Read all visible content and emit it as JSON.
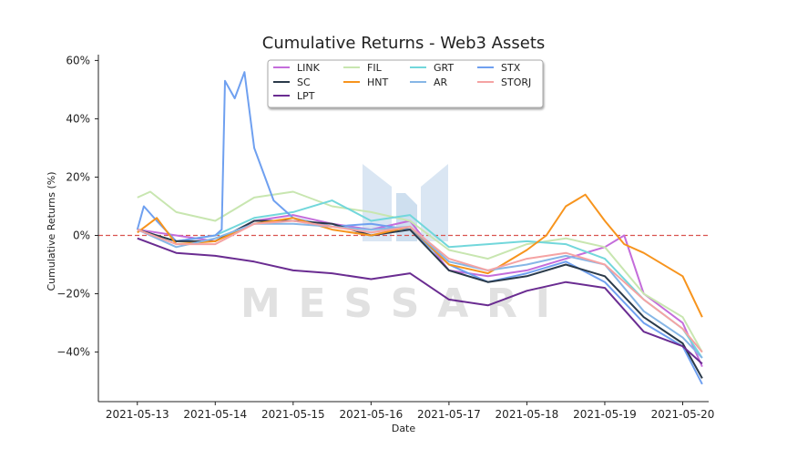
{
  "chart_data": {
    "type": "line",
    "title": "Cumulative Returns - Web3 Assets",
    "xlabel": "Date",
    "ylabel": "Cumulative Returns (%)",
    "x_ticks": [
      "2021-05-13",
      "2021-05-14",
      "2021-05-15",
      "2021-05-16",
      "2021-05-17",
      "2021-05-18",
      "2021-05-19",
      "2021-05-20"
    ],
    "y_ticks": [
      {
        "value": 60,
        "label": "60%"
      },
      {
        "value": 40,
        "label": "40%"
      },
      {
        "value": 20,
        "label": "20%"
      },
      {
        "value": 0,
        "label": "0%"
      },
      {
        "value": -20,
        "label": "−20%"
      },
      {
        "value": -40,
        "label": "−40%"
      }
    ],
    "xlim": [
      "2021-05-12 12:00",
      "2021-05-20 08:00"
    ],
    "ylim": [
      -57,
      62
    ],
    "reference_line": {
      "value": 0,
      "color": "#d9534f",
      "style": "dashed"
    },
    "legend_placement": "top-center",
    "grid": false,
    "watermark": "MESSARI",
    "series": [
      {
        "name": "LINK",
        "color": "#c46ddb",
        "points": [
          [
            "2021-05-13 00:00",
            2
          ],
          [
            "2021-05-13 12:00",
            0
          ],
          [
            "2021-05-14 00:00",
            -2
          ],
          [
            "2021-05-14 12:00",
            5
          ],
          [
            "2021-05-15 00:00",
            7
          ],
          [
            "2021-05-15 12:00",
            4
          ],
          [
            "2021-05-16 00:00",
            2
          ],
          [
            "2021-05-16 12:00",
            5
          ],
          [
            "2021-05-17 00:00",
            -12
          ],
          [
            "2021-05-17 12:00",
            -14
          ],
          [
            "2021-05-18 00:00",
            -12
          ],
          [
            "2021-05-18 12:00",
            -8
          ],
          [
            "2021-05-19 00:00",
            -4
          ],
          [
            "2021-05-19 06:00",
            0
          ],
          [
            "2021-05-19 12:00",
            -20
          ],
          [
            "2021-05-20 00:00",
            -30
          ],
          [
            "2021-05-20 06:00",
            -45
          ]
        ]
      },
      {
        "name": "FIL",
        "color": "#c8e6b0",
        "points": [
          [
            "2021-05-13 00:00",
            13
          ],
          [
            "2021-05-13 04:00",
            15
          ],
          [
            "2021-05-13 12:00",
            8
          ],
          [
            "2021-05-14 00:00",
            5
          ],
          [
            "2021-05-14 12:00",
            13
          ],
          [
            "2021-05-15 00:00",
            15
          ],
          [
            "2021-05-15 12:00",
            10
          ],
          [
            "2021-05-16 00:00",
            8
          ],
          [
            "2021-05-16 12:00",
            5
          ],
          [
            "2021-05-17 00:00",
            -5
          ],
          [
            "2021-05-17 12:00",
            -8
          ],
          [
            "2021-05-18 00:00",
            -3
          ],
          [
            "2021-05-18 12:00",
            -1
          ],
          [
            "2021-05-19 00:00",
            -4
          ],
          [
            "2021-05-19 12:00",
            -20
          ],
          [
            "2021-05-20 00:00",
            -28
          ],
          [
            "2021-05-20 06:00",
            -40
          ]
        ]
      },
      {
        "name": "GRT",
        "color": "#72d7db",
        "points": [
          [
            "2021-05-13 00:00",
            2
          ],
          [
            "2021-05-13 12:00",
            -2
          ],
          [
            "2021-05-14 00:00",
            0
          ],
          [
            "2021-05-14 12:00",
            6
          ],
          [
            "2021-05-15 00:00",
            8
          ],
          [
            "2021-05-15 12:00",
            12
          ],
          [
            "2021-05-16 00:00",
            5
          ],
          [
            "2021-05-16 12:00",
            7
          ],
          [
            "2021-05-17 00:00",
            -4
          ],
          [
            "2021-05-17 12:00",
            -3
          ],
          [
            "2021-05-18 00:00",
            -2
          ],
          [
            "2021-05-18 12:00",
            -3
          ],
          [
            "2021-05-19 00:00",
            -8
          ],
          [
            "2021-05-19 12:00",
            -22
          ],
          [
            "2021-05-20 00:00",
            -32
          ],
          [
            "2021-05-20 06:00",
            -42
          ]
        ]
      },
      {
        "name": "STX",
        "color": "#6fa0f0",
        "points": [
          [
            "2021-05-13 00:00",
            2
          ],
          [
            "2021-05-13 02:00",
            10
          ],
          [
            "2021-05-13 06:00",
            5
          ],
          [
            "2021-05-13 12:00",
            -2
          ],
          [
            "2021-05-14 00:00",
            0
          ],
          [
            "2021-05-14 02:00",
            2
          ],
          [
            "2021-05-14 03:00",
            53
          ],
          [
            "2021-05-14 06:00",
            47
          ],
          [
            "2021-05-14 09:00",
            56
          ],
          [
            "2021-05-14 12:00",
            30
          ],
          [
            "2021-05-14 18:00",
            12
          ],
          [
            "2021-05-15 00:00",
            6
          ],
          [
            "2021-05-15 12:00",
            3
          ],
          [
            "2021-05-16 00:00",
            4
          ],
          [
            "2021-05-16 12:00",
            2
          ],
          [
            "2021-05-17 00:00",
            -10
          ],
          [
            "2021-05-17 12:00",
            -16
          ],
          [
            "2021-05-18 00:00",
            -13
          ],
          [
            "2021-05-18 12:00",
            -9
          ],
          [
            "2021-05-19 00:00",
            -16
          ],
          [
            "2021-05-19 12:00",
            -30
          ],
          [
            "2021-05-20 00:00",
            -38
          ],
          [
            "2021-05-20 06:00",
            -51
          ]
        ]
      },
      {
        "name": "SC",
        "color": "#2a3a4a",
        "points": [
          [
            "2021-05-13 00:00",
            2
          ],
          [
            "2021-05-13 12:00",
            -2
          ],
          [
            "2021-05-14 00:00",
            -2
          ],
          [
            "2021-05-14 12:00",
            5
          ],
          [
            "2021-05-15 00:00",
            5
          ],
          [
            "2021-05-15 12:00",
            4
          ],
          [
            "2021-05-16 00:00",
            0
          ],
          [
            "2021-05-16 12:00",
            2
          ],
          [
            "2021-05-17 00:00",
            -12
          ],
          [
            "2021-05-17 12:00",
            -16
          ],
          [
            "2021-05-18 00:00",
            -14
          ],
          [
            "2021-05-18 12:00",
            -10
          ],
          [
            "2021-05-19 00:00",
            -14
          ],
          [
            "2021-05-19 12:00",
            -28
          ],
          [
            "2021-05-20 00:00",
            -37
          ],
          [
            "2021-05-20 06:00",
            -49
          ]
        ]
      },
      {
        "name": "HNT",
        "color": "#f7941d",
        "points": [
          [
            "2021-05-13 00:00",
            1
          ],
          [
            "2021-05-13 06:00",
            6
          ],
          [
            "2021-05-13 12:00",
            -3
          ],
          [
            "2021-05-14 00:00",
            -2
          ],
          [
            "2021-05-14 12:00",
            4
          ],
          [
            "2021-05-15 00:00",
            6
          ],
          [
            "2021-05-15 12:00",
            2
          ],
          [
            "2021-05-16 00:00",
            0
          ],
          [
            "2021-05-16 12:00",
            3
          ],
          [
            "2021-05-17 00:00",
            -10
          ],
          [
            "2021-05-17 12:00",
            -13
          ],
          [
            "2021-05-18 00:00",
            -5
          ],
          [
            "2021-05-18 06:00",
            0
          ],
          [
            "2021-05-18 12:00",
            10
          ],
          [
            "2021-05-18 18:00",
            14
          ],
          [
            "2021-05-19 00:00",
            5
          ],
          [
            "2021-05-19 06:00",
            -3
          ],
          [
            "2021-05-19 12:00",
            -6
          ],
          [
            "2021-05-20 00:00",
            -14
          ],
          [
            "2021-05-20 06:00",
            -28
          ]
        ]
      },
      {
        "name": "AR",
        "color": "#86b6e6",
        "points": [
          [
            "2021-05-13 00:00",
            2
          ],
          [
            "2021-05-13 12:00",
            -4
          ],
          [
            "2021-05-14 00:00",
            -1
          ],
          [
            "2021-05-14 12:00",
            4
          ],
          [
            "2021-05-15 00:00",
            4
          ],
          [
            "2021-05-15 12:00",
            3
          ],
          [
            "2021-05-16 00:00",
            2
          ],
          [
            "2021-05-16 12:00",
            3
          ],
          [
            "2021-05-17 00:00",
            -9
          ],
          [
            "2021-05-17 12:00",
            -12
          ],
          [
            "2021-05-18 00:00",
            -10
          ],
          [
            "2021-05-18 12:00",
            -7
          ],
          [
            "2021-05-19 00:00",
            -10
          ],
          [
            "2021-05-19 12:00",
            -26
          ],
          [
            "2021-05-20 00:00",
            -35
          ],
          [
            "2021-05-20 06:00",
            -42
          ]
        ]
      },
      {
        "name": "STORJ",
        "color": "#f5a3a3",
        "points": [
          [
            "2021-05-13 00:00",
            2
          ],
          [
            "2021-05-13 12:00",
            -3
          ],
          [
            "2021-05-14 00:00",
            -3
          ],
          [
            "2021-05-14 12:00",
            4
          ],
          [
            "2021-05-15 00:00",
            5
          ],
          [
            "2021-05-15 12:00",
            3
          ],
          [
            "2021-05-16 00:00",
            1
          ],
          [
            "2021-05-16 12:00",
            3
          ],
          [
            "2021-05-17 00:00",
            -8
          ],
          [
            "2021-05-17 12:00",
            -12
          ],
          [
            "2021-05-18 00:00",
            -8
          ],
          [
            "2021-05-18 12:00",
            -6
          ],
          [
            "2021-05-19 00:00",
            -10
          ],
          [
            "2021-05-19 12:00",
            -22
          ],
          [
            "2021-05-20 00:00",
            -32
          ],
          [
            "2021-05-20 06:00",
            -40
          ]
        ]
      },
      {
        "name": "LPT",
        "color": "#6a2c91",
        "points": [
          [
            "2021-05-13 00:00",
            -1
          ],
          [
            "2021-05-13 12:00",
            -6
          ],
          [
            "2021-05-14 00:00",
            -7
          ],
          [
            "2021-05-14 12:00",
            -9
          ],
          [
            "2021-05-15 00:00",
            -12
          ],
          [
            "2021-05-15 12:00",
            -13
          ],
          [
            "2021-05-16 00:00",
            -15
          ],
          [
            "2021-05-16 12:00",
            -13
          ],
          [
            "2021-05-17 00:00",
            -22
          ],
          [
            "2021-05-17 12:00",
            -24
          ],
          [
            "2021-05-18 00:00",
            -19
          ],
          [
            "2021-05-18 12:00",
            -16
          ],
          [
            "2021-05-19 00:00",
            -18
          ],
          [
            "2021-05-19 12:00",
            -33
          ],
          [
            "2021-05-20 00:00",
            -38
          ],
          [
            "2021-05-20 06:00",
            -44
          ]
        ]
      }
    ]
  }
}
